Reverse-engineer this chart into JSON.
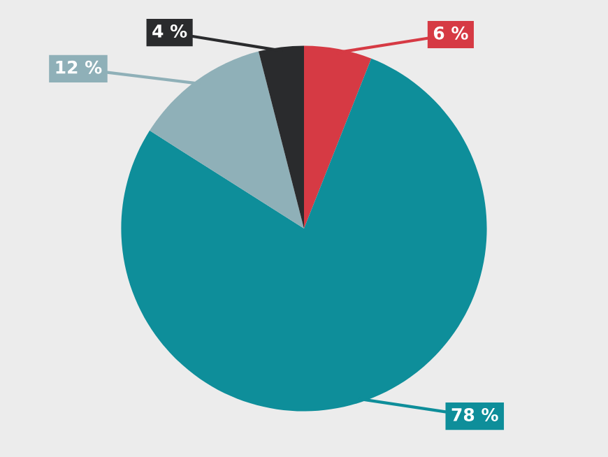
{
  "chart_data": {
    "type": "pie",
    "categories": [
      null,
      null,
      null,
      null
    ],
    "values": [
      6,
      78,
      12,
      4
    ],
    "value_labels": [
      "6 %",
      "78 %",
      "12 %",
      "4 %"
    ],
    "colors": [
      "#d63a44",
      "#0e8e9a",
      "#8fb0b8",
      "#2a2b2d"
    ],
    "legend": false
  }
}
